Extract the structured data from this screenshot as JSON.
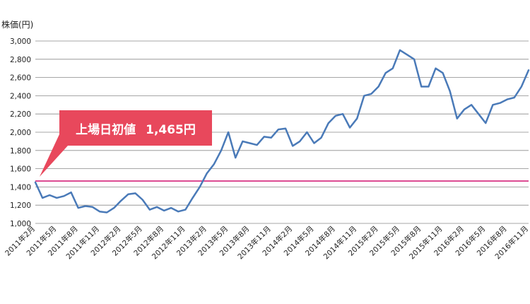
{
  "chart_data": {
    "type": "line",
    "ylabel": "株価(円)",
    "ylim": [
      1000,
      3000
    ],
    "y_ticks": [
      "1,000",
      "1,200",
      "1,400",
      "1,600",
      "1,800",
      "2,000",
      "2,200",
      "2,400",
      "2,600",
      "2,800",
      "3,000"
    ],
    "x_tick_labels": [
      "2011年2月",
      "2011年5月",
      "2011年8月",
      "2011年11月",
      "2012年2月",
      "2012年5月",
      "2012年8月",
      "2012年11月",
      "2013年2月",
      "2013年5月",
      "2013年8月",
      "2013年11月",
      "2014年2月",
      "2014年5月",
      "2014年8月",
      "2014年11月",
      "2015年2月",
      "2015年5月",
      "2015年8月",
      "2015年11月",
      "2016年2月",
      "2016年5月",
      "2016年8月",
      "2016年11月"
    ],
    "grid": true,
    "reference_line": {
      "value": 1465,
      "color": "#d4237a"
    },
    "annotation": {
      "label": "上場日初値",
      "value_text": "1,465円"
    },
    "series": [
      {
        "color": "#4a7ab8",
        "points": [
          [
            "2011-02",
            1450
          ],
          [
            "2011-03",
            1280
          ],
          [
            "2011-04",
            1310
          ],
          [
            "2011-05",
            1280
          ],
          [
            "2011-06",
            1300
          ],
          [
            "2011-07",
            1340
          ],
          [
            "2011-08",
            1170
          ],
          [
            "2011-09",
            1190
          ],
          [
            "2011-10",
            1180
          ],
          [
            "2011-11",
            1130
          ],
          [
            "2011-12",
            1120
          ],
          [
            "2012-01",
            1170
          ],
          [
            "2012-02",
            1250
          ],
          [
            "2012-03",
            1320
          ],
          [
            "2012-04",
            1330
          ],
          [
            "2012-05",
            1260
          ],
          [
            "2012-06",
            1150
          ],
          [
            "2012-07",
            1180
          ],
          [
            "2012-08",
            1140
          ],
          [
            "2012-09",
            1170
          ],
          [
            "2012-10",
            1130
          ],
          [
            "2012-11",
            1150
          ],
          [
            "2012-12",
            1280
          ],
          [
            "2013-01",
            1400
          ],
          [
            "2013-02",
            1550
          ],
          [
            "2013-03",
            1650
          ],
          [
            "2013-04",
            1800
          ],
          [
            "2013-05",
            2000
          ],
          [
            "2013-06",
            1720
          ],
          [
            "2013-07",
            1900
          ],
          [
            "2013-08",
            1880
          ],
          [
            "2013-09",
            1860
          ],
          [
            "2013-10",
            1950
          ],
          [
            "2013-11",
            1940
          ],
          [
            "2013-12",
            2030
          ],
          [
            "2014-01",
            2040
          ],
          [
            "2014-02",
            1850
          ],
          [
            "2014-03",
            1900
          ],
          [
            "2014-04",
            2000
          ],
          [
            "2014-05",
            1880
          ],
          [
            "2014-06",
            1940
          ],
          [
            "2014-07",
            2100
          ],
          [
            "2014-08",
            2180
          ],
          [
            "2014-09",
            2200
          ],
          [
            "2014-10",
            2050
          ],
          [
            "2014-11",
            2150
          ],
          [
            "2014-12",
            2400
          ],
          [
            "2015-01",
            2420
          ],
          [
            "2015-02",
            2500
          ],
          [
            "2015-03",
            2650
          ],
          [
            "2015-04",
            2700
          ],
          [
            "2015-05",
            2900
          ],
          [
            "2015-06",
            2850
          ],
          [
            "2015-07",
            2800
          ],
          [
            "2015-08",
            2500
          ],
          [
            "2015-09",
            2500
          ],
          [
            "2015-10",
            2700
          ],
          [
            "2015-11",
            2650
          ],
          [
            "2015-12",
            2450
          ],
          [
            "2016-01",
            2150
          ],
          [
            "2016-02",
            2250
          ],
          [
            "2016-03",
            2300
          ],
          [
            "2016-04",
            2200
          ],
          [
            "2016-05",
            2100
          ],
          [
            "2016-06",
            2300
          ],
          [
            "2016-07",
            2320
          ],
          [
            "2016-08",
            2360
          ],
          [
            "2016-09",
            2380
          ],
          [
            "2016-10",
            2500
          ],
          [
            "2016-11",
            2680
          ]
        ]
      }
    ]
  }
}
